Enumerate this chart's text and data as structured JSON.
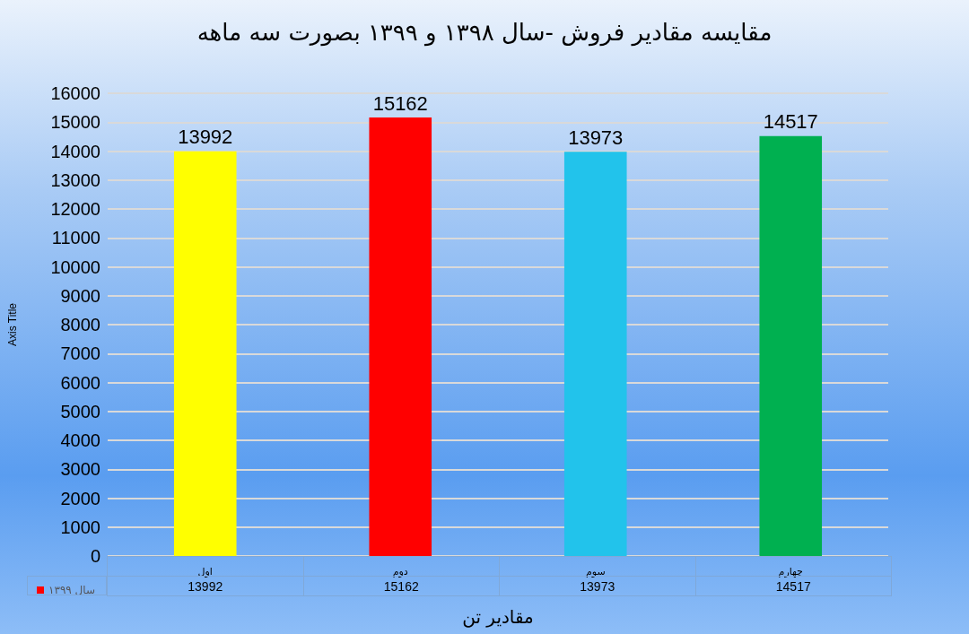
{
  "chart_data": {
    "type": "bar",
    "title": "مقایسه مقادیر فروش -سال ۱۳۹۸ و ۱۳۹۹ بصورت سه ماهه",
    "xlabel": "مقادیر تن",
    "ylabel": "Axis Title",
    "categories": [
      "اول",
      "دوم",
      "سوم",
      "چهارم"
    ],
    "series": [
      {
        "name": "سال ۱۳۹۹",
        "color": "#ff0000",
        "colors": [
          "#ffff00",
          "#ff0000",
          "#22c3eb",
          "#00b050"
        ],
        "values": [
          13992,
          15162,
          13973,
          14517
        ],
        "value_labels": [
          "13992",
          "15162",
          "13973",
          "14517"
        ]
      }
    ],
    "ylim": [
      0,
      16000
    ],
    "yticks": [
      0,
      1000,
      2000,
      3000,
      4000,
      5000,
      6000,
      7000,
      8000,
      9000,
      10000,
      11000,
      12000,
      13000,
      14000,
      15000,
      16000
    ],
    "annotations": [
      "13992",
      "15162",
      "13973",
      "14517"
    ],
    "grid": "y",
    "legend": "bottom left",
    "data_labels": true
  }
}
